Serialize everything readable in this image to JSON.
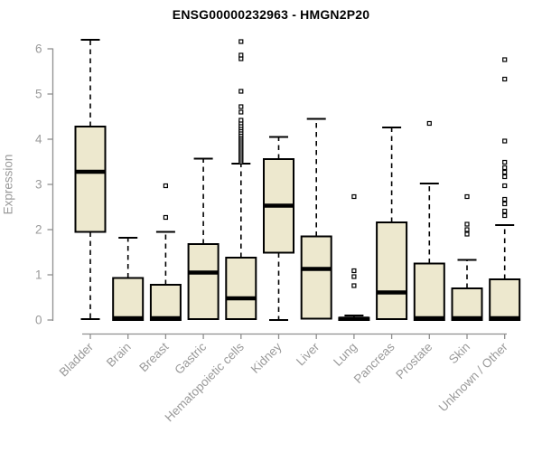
{
  "title": "ENSG00000232963 - HMGN2P20",
  "style": {
    "title_color": "#000000",
    "axis_color": "#8f8f8f",
    "tick_label_color": "#9a9a9a",
    "box_fill": "#EDE8CE",
    "box_stroke": "#000000",
    "whisker_color": "#000000",
    "outlier_fill": "#ffffff",
    "background": "#ffffff"
  },
  "chart_data": {
    "type": "boxplot",
    "title": "ENSG00000232963 - HMGN2P20",
    "xlabel": "",
    "ylabel": "Expression",
    "ylim": [
      0,
      6.3
    ],
    "yticks": [
      0,
      1,
      2,
      3,
      4,
      5,
      6
    ],
    "grid": false,
    "legend": false,
    "categories": [
      "Bladder",
      "Brain",
      "Breast",
      "Gastric",
      "Hematopoietic cells",
      "Kidney",
      "Liver",
      "Lung",
      "Pancreas",
      "Prostate",
      "Skin",
      "Unknown / Other"
    ],
    "series": [
      {
        "name": "Bladder",
        "whisker_low": 0.02,
        "q1": 1.95,
        "median": 3.28,
        "q3": 4.28,
        "whisker_high": 6.2,
        "outliers": []
      },
      {
        "name": "Brain",
        "whisker_low": 0,
        "q1": 0,
        "median": 0.04,
        "q3": 0.93,
        "whisker_high": 1.82,
        "outliers": []
      },
      {
        "name": "Breast",
        "whisker_low": 0,
        "q1": 0,
        "median": 0.04,
        "q3": 0.78,
        "whisker_high": 1.95,
        "outliers": [
          2.27,
          2.97
        ]
      },
      {
        "name": "Gastric",
        "whisker_low": 0,
        "q1": 0.02,
        "median": 1.05,
        "q3": 1.68,
        "whisker_high": 3.57,
        "outliers": []
      },
      {
        "name": "Hematopoietic cells",
        "whisker_low": 0,
        "q1": 0.02,
        "median": 0.48,
        "q3": 1.38,
        "whisker_high": 3.46,
        "outliers": [
          3.5,
          3.54,
          3.58,
          3.62,
          3.66,
          3.7,
          3.74,
          3.78,
          3.82,
          3.86,
          3.9,
          3.94,
          3.98,
          4.02,
          4.06,
          4.1,
          4.15,
          4.2,
          4.25,
          4.3,
          4.36,
          4.42,
          4.6,
          4.72,
          5.06,
          5.78,
          5.86,
          6.16
        ]
      },
      {
        "name": "Kidney",
        "whisker_low": 0,
        "q1": 1.49,
        "median": 2.53,
        "q3": 3.56,
        "whisker_high": 4.05,
        "outliers": []
      },
      {
        "name": "Liver",
        "whisker_low": 0,
        "q1": 0.03,
        "median": 1.13,
        "q3": 1.85,
        "whisker_high": 4.45,
        "outliers": []
      },
      {
        "name": "Lung",
        "whisker_low": 0,
        "q1": 0,
        "median": 0.03,
        "q3": 0.05,
        "whisker_high": 0.1,
        "outliers": [
          0.76,
          0.96,
          1.09,
          2.73
        ]
      },
      {
        "name": "Pancreas",
        "whisker_low": 0,
        "q1": 0.02,
        "median": 0.61,
        "q3": 2.16,
        "whisker_high": 4.26,
        "outliers": []
      },
      {
        "name": "Prostate",
        "whisker_low": 0,
        "q1": 0,
        "median": 0.04,
        "q3": 1.25,
        "whisker_high": 3.02,
        "outliers": [
          4.35
        ]
      },
      {
        "name": "Skin",
        "whisker_low": 0,
        "q1": 0,
        "median": 0.04,
        "q3": 0.7,
        "whisker_high": 1.33,
        "outliers": [
          1.9,
          2.0,
          2.12,
          2.73
        ]
      },
      {
        "name": "Unknown / Other",
        "whisker_low": 0,
        "q1": 0,
        "median": 0.04,
        "q3": 0.9,
        "whisker_high": 2.1,
        "outliers": [
          2.31,
          2.41,
          2.57,
          2.67,
          2.97,
          3.17,
          3.27,
          3.37,
          3.49,
          3.96,
          5.33,
          5.76
        ]
      }
    ]
  }
}
